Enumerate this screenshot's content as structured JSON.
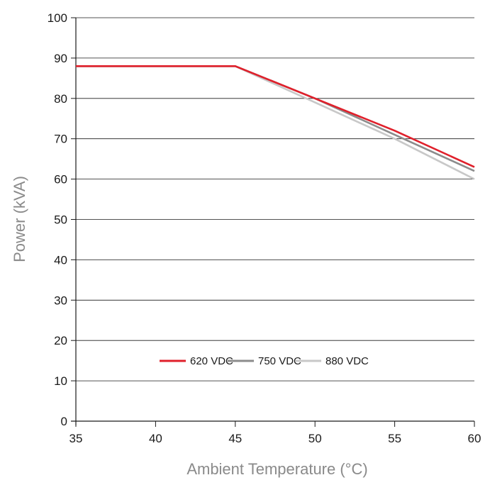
{
  "chart_data": {
    "type": "line",
    "title": "",
    "xlabel": "Ambient Temperature (°C)",
    "ylabel": "Power (kVA)",
    "xlim": [
      35,
      60
    ],
    "ylim": [
      0,
      100
    ],
    "xticks": [
      35,
      40,
      45,
      50,
      55,
      60
    ],
    "yticks": [
      0,
      10,
      20,
      30,
      40,
      50,
      60,
      70,
      80,
      90,
      100
    ],
    "grid": "horizontal",
    "legend_position": "bottom-center",
    "series": [
      {
        "name": "620 VDC",
        "color": "#e0202b",
        "x": [
          35,
          45,
          50,
          55,
          60
        ],
        "y": [
          88,
          88,
          80,
          72,
          63
        ]
      },
      {
        "name": "750 VDC",
        "color": "#8c8c8c",
        "x": [
          35,
          45,
          50,
          55,
          60
        ],
        "y": [
          88,
          88,
          80,
          71,
          62
        ]
      },
      {
        "name": "880 VDC",
        "color": "#c8c8c8",
        "x": [
          35,
          45,
          50,
          55,
          60
        ],
        "y": [
          88,
          88,
          79,
          70,
          60
        ]
      }
    ]
  }
}
